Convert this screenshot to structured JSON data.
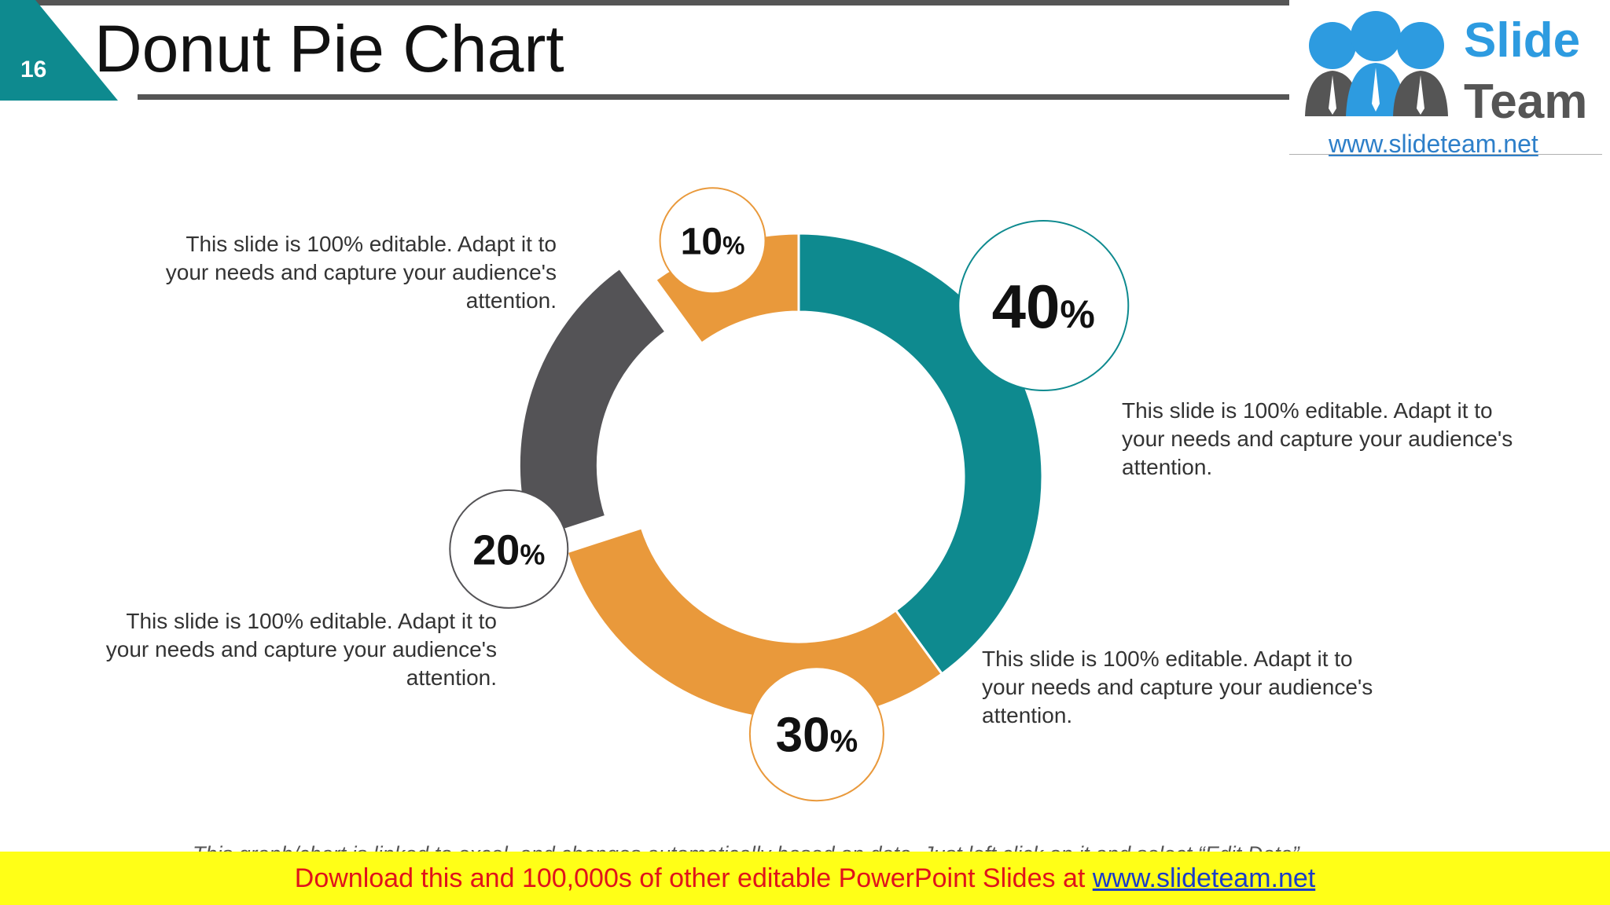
{
  "slide": {
    "number": "16",
    "title": "Donut Pie Chart"
  },
  "logo": {
    "line1": "Slide",
    "line2": "Team",
    "url": "www.slideteam.net"
  },
  "colors": {
    "teal": "#0e8a8f",
    "orange": "#e9993b",
    "dark_gray": "#545356",
    "slide_number_bg": "#0e8a8f",
    "banner_bg": "#ffff17",
    "banner_text": "#e0131b"
  },
  "chart_data": {
    "type": "pie",
    "variant": "donut",
    "slices": [
      {
        "label": "40%",
        "value": 40,
        "color": "#0e8a8f",
        "exploded": false
      },
      {
        "label": "30%",
        "value": 30,
        "color": "#e9993b",
        "exploded": false
      },
      {
        "label": "20%",
        "value": 20,
        "color": "#545356",
        "exploded": true
      },
      {
        "label": "10%",
        "value": 10,
        "color": "#e9993b",
        "exploded": false
      }
    ],
    "start_angle_deg": 0,
    "direction": "clockwise",
    "data_labels": [
      {
        "number": "40",
        "unit": "%"
      },
      {
        "number": "30",
        "unit": "%"
      },
      {
        "number": "20",
        "unit": "%"
      },
      {
        "number": "10",
        "unit": "%"
      }
    ]
  },
  "callouts": {
    "top_left": "This slide is 100% editable. Adapt it to your needs and capture your audience's attention.",
    "right": "This slide is 100% editable. Adapt it to your needs and capture your audience's attention.",
    "bottom_left": "This slide is 100% editable. Adapt it to your needs and capture your audience's attention.",
    "bottom_right": "This slide is 100% editable. Adapt it to your needs and capture your audience's attention."
  },
  "footnote": "This graph/chart is linked to excel, and changes automatically based on data. Just left click on it and select “Edit Data”.",
  "banner": {
    "text": "Download this and 100,000s of other editable PowerPoint Slides at ",
    "link": "www.slideteam.net"
  }
}
